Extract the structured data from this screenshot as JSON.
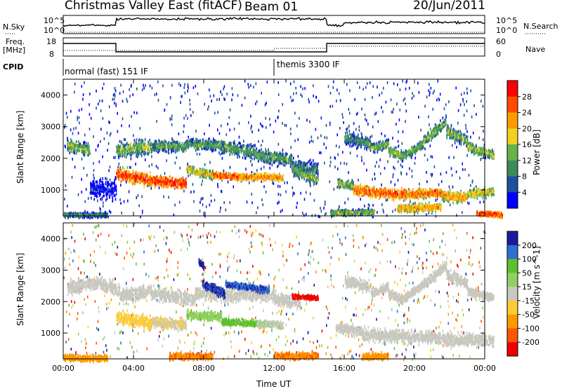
{
  "header": {
    "title": "Christmas Valley East (fitACF)",
    "beam": "Beam 01",
    "date": "20/Jun/2011"
  },
  "top_panels": {
    "nsky_label": "N.Sky",
    "nsky_ticks": [
      "10^5",
      "10^0"
    ],
    "nsearch_label": "N.Search",
    "freq_label": "Freq.",
    "freq_unit": "[MHz]",
    "freq_ticks": [
      "18",
      "8"
    ],
    "nave_label": "Nave",
    "nave_ticks": [
      "60",
      "0"
    ],
    "cpid_label": "CPID",
    "cpid_segments": [
      "normal (fast) 151 IF",
      "themis 3300 IF"
    ]
  },
  "colors": {
    "power": [
      "#0000ff",
      "#1f4fa0",
      "#3c8c5a",
      "#66b24a",
      "#f0d020",
      "#ff9a00",
      "#ff4a00",
      "#ff0000"
    ],
    "velocity": [
      "#1a1aa0",
      "#2f6fd0",
      "#5fbf2f",
      "#90d060",
      "#c8c8c0",
      "#ffcc33",
      "#ff9900",
      "#ff5500",
      "#ee0000"
    ]
  },
  "chart_data": [
    {
      "type": "heatmap",
      "title": "",
      "ylabel": "Slant Range [km]",
      "xlabel": "",
      "x_ticks": [
        "00:00",
        "04:00",
        "08:00",
        "12:00",
        "16:00",
        "20:00",
        "00:00"
      ],
      "y_ticks": [
        "1000",
        "2000",
        "3000",
        "4000"
      ],
      "ylim": [
        180,
        4500
      ],
      "colorbar": {
        "label": "Power [dB]",
        "ticks": [
          "4",
          "8",
          "12",
          "16",
          "20",
          "24",
          "28"
        ],
        "range": [
          0,
          32
        ]
      },
      "series": [
        {
          "segments": [
            [
              0.2,
              2450,
              2300,
              300,
              0.45
            ],
            [
              1.5,
              1080,
              1050,
              420,
              0.1
            ],
            [
              3.0,
              2300,
              2400,
              350,
              0.45
            ],
            [
              5.0,
              2420,
              2420,
              250,
              0.4
            ],
            [
              7.0,
              2500,
              2450,
              250,
              0.4
            ],
            [
              9.0,
              2400,
              2200,
              300,
              0.4
            ],
            [
              11.0,
              2150,
              2000,
              300,
              0.4
            ],
            [
              13.0,
              1800,
              1700,
              300,
              0.35
            ]
          ]
        },
        {
          "segments": [
            [
              3.0,
              1550,
              1350,
              300,
              0.85
            ],
            [
              5.0,
              1330,
              1250,
              250,
              0.9
            ],
            [
              7.0,
              1700,
              1500,
              200,
              0.6
            ],
            [
              8.5,
              1500,
              1450,
              150,
              0.85
            ],
            [
              10.0,
              1450,
              1450,
              150,
              0.75
            ],
            [
              13.0,
              1700,
              1350,
              250,
              0.45
            ]
          ]
        },
        {
          "segments": [
            [
              15.6,
              1250,
              1150,
              200,
              0.5
            ],
            [
              16.5,
              1050,
              950,
              250,
              0.8
            ],
            [
              18.0,
              950,
              900,
              250,
              0.85
            ],
            [
              19.5,
              900,
              950,
              200,
              0.8
            ],
            [
              21.5,
              900,
              800,
              250,
              0.7
            ],
            [
              23.0,
              900,
              1000,
              200,
              0.6
            ]
          ]
        },
        {
          "segments": [
            [
              16.0,
              2700,
              2500,
              300,
              0.35
            ],
            [
              17.5,
              2350,
              2500,
              200,
              0.45
            ],
            [
              18.5,
              2300,
              2100,
              200,
              0.5
            ],
            [
              19.3,
              2100,
              2500,
              200,
              0.45
            ],
            [
              20.5,
              2600,
              3200,
              250,
              0.45
            ],
            [
              21.8,
              2900,
              2600,
              250,
              0.45
            ],
            [
              23.0,
              2400,
              2150,
              200,
              0.5
            ]
          ]
        },
        {
          "segments": [
            [
              0.0,
              250,
              250,
              120,
              0.35
            ],
            [
              15.2,
              300,
              350,
              120,
              0.5
            ],
            [
              19.0,
              450,
              500,
              180,
              0.7
            ],
            [
              23.5,
              300,
              250,
              120,
              0.9
            ]
          ]
        }
      ]
    },
    {
      "type": "heatmap",
      "title": "",
      "ylabel": "Slant Range [km]",
      "xlabel": "Time UT",
      "x_ticks": [
        "00:00",
        "04:00",
        "08:00",
        "12:00",
        "16:00",
        "20:00",
        "00:00"
      ],
      "y_ticks": [
        "1000",
        "2000",
        "3000",
        "4000"
      ],
      "ylim": [
        180,
        4500
      ],
      "colorbar": {
        "label": "Velocity [m s^-1]",
        "ticks": [
          "200",
          "100",
          "50",
          "15",
          "-15",
          "-50",
          "-100",
          "-200"
        ],
        "range": [
          -250,
          250
        ]
      },
      "series": [
        {
          "segments": [
            [
              0.2,
              2450,
              2650,
              300,
              0.0
            ],
            [
              2.0,
              2650,
              2400,
              300,
              0.0
            ],
            [
              3.2,
              2200,
              2400,
              300,
              0.0
            ],
            [
              5.0,
              2300,
              2100,
              300,
              0.0
            ],
            [
              7.5,
              2300,
              2200,
              300,
              0.0
            ],
            [
              10.0,
              2300,
              2250,
              300,
              0.0
            ],
            [
              12.0,
              2150,
              2000,
              300,
              0.0
            ]
          ]
        },
        {
          "segments": [
            [
              3.0,
              1550,
              1350,
              300,
              -0.2
            ],
            [
              5.0,
              1400,
              1300,
              250,
              -0.1
            ],
            [
              7.0,
              1600,
              1550,
              200,
              0.3
            ],
            [
              9.0,
              1400,
              1350,
              150,
              0.45
            ],
            [
              11.0,
              1350,
              1300,
              150,
              0.1
            ]
          ]
        },
        {
          "segments": [
            [
              16.0,
              2700,
              2500,
              250,
              0.0
            ],
            [
              17.5,
              2300,
              2500,
              200,
              0.0
            ],
            [
              18.5,
              2300,
              2100,
              200,
              0.0
            ],
            [
              19.3,
              2100,
              2600,
              200,
              0.0
            ],
            [
              20.5,
              2600,
              3200,
              250,
              0.0
            ],
            [
              21.8,
              2900,
              2600,
              250,
              0.0
            ],
            [
              23.0,
              2400,
              2150,
              200,
              0.0
            ]
          ]
        },
        {
          "segments": [
            [
              15.5,
              1200,
              1100,
              250,
              0.0
            ],
            [
              17.0,
              1000,
              950,
              300,
              0.0
            ],
            [
              19.0,
              950,
              900,
              300,
              0.0
            ],
            [
              21.0,
              900,
              800,
              300,
              0.0
            ],
            [
              23.0,
              850,
              800,
              250,
              0.0
            ]
          ]
        },
        {
          "segments": [
            [
              0.0,
              250,
              250,
              150,
              -0.5
            ],
            [
              6.0,
              300,
              300,
              150,
              -0.6
            ],
            [
              12.0,
              300,
              320,
              150,
              -0.6
            ],
            [
              17.0,
              300,
              300,
              150,
              -0.55
            ]
          ]
        },
        {
          "segments": [
            [
              7.7,
              3300,
              3150,
              150,
              0.95
            ],
            [
              7.9,
              2600,
              2300,
              200,
              0.9
            ],
            [
              9.2,
              2600,
              2400,
              150,
              0.85
            ],
            [
              13.0,
              2200,
              2150,
              100,
              -0.95
            ]
          ]
        }
      ]
    }
  ]
}
